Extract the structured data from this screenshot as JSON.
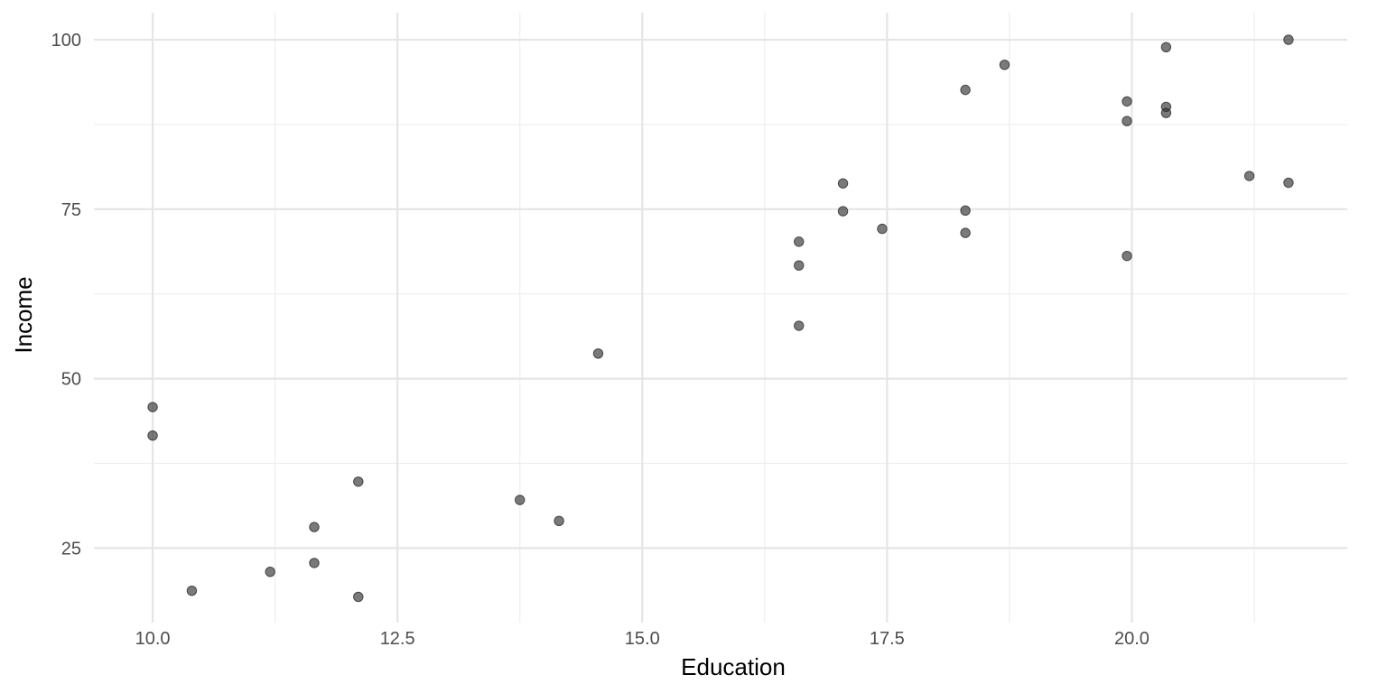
{
  "chart_data": {
    "type": "scatter",
    "title": "",
    "xlabel": "Education",
    "ylabel": "Income",
    "xlim": [
      9.4,
      22.2
    ],
    "ylim": [
      14,
      104
    ],
    "x_ticks": [
      10.0,
      12.5,
      15.0,
      17.5,
      20.0
    ],
    "x_tick_labels": [
      "10.0",
      "12.5",
      "15.0",
      "17.5",
      "20.0"
    ],
    "y_ticks": [
      25,
      50,
      75,
      100
    ],
    "y_tick_labels": [
      "25",
      "50",
      "75",
      "100"
    ],
    "grid": true,
    "legend": "none",
    "point_color": "#333333",
    "points": [
      {
        "x": 10.0,
        "y": 45.8
      },
      {
        "x": 10.0,
        "y": 41.6
      },
      {
        "x": 10.4,
        "y": 18.7
      },
      {
        "x": 11.2,
        "y": 21.5
      },
      {
        "x": 11.65,
        "y": 28.1
      },
      {
        "x": 11.65,
        "y": 22.8
      },
      {
        "x": 12.1,
        "y": 34.8
      },
      {
        "x": 12.1,
        "y": 17.8
      },
      {
        "x": 13.75,
        "y": 32.1
      },
      {
        "x": 14.15,
        "y": 29.0
      },
      {
        "x": 14.55,
        "y": 53.7
      },
      {
        "x": 16.6,
        "y": 70.2
      },
      {
        "x": 16.6,
        "y": 66.7
      },
      {
        "x": 16.6,
        "y": 57.8
      },
      {
        "x": 17.05,
        "y": 78.8
      },
      {
        "x": 17.05,
        "y": 74.7
      },
      {
        "x": 17.45,
        "y": 72.1
      },
      {
        "x": 18.3,
        "y": 92.6
      },
      {
        "x": 18.3,
        "y": 74.8
      },
      {
        "x": 18.3,
        "y": 71.5
      },
      {
        "x": 18.7,
        "y": 96.3
      },
      {
        "x": 19.95,
        "y": 90.9
      },
      {
        "x": 19.95,
        "y": 88.0
      },
      {
        "x": 19.95,
        "y": 68.1
      },
      {
        "x": 20.35,
        "y": 98.9
      },
      {
        "x": 20.35,
        "y": 90.1
      },
      {
        "x": 20.35,
        "y": 89.2
      },
      {
        "x": 21.2,
        "y": 79.9
      },
      {
        "x": 21.6,
        "y": 100.0
      },
      {
        "x": 21.6,
        "y": 78.9
      }
    ]
  }
}
